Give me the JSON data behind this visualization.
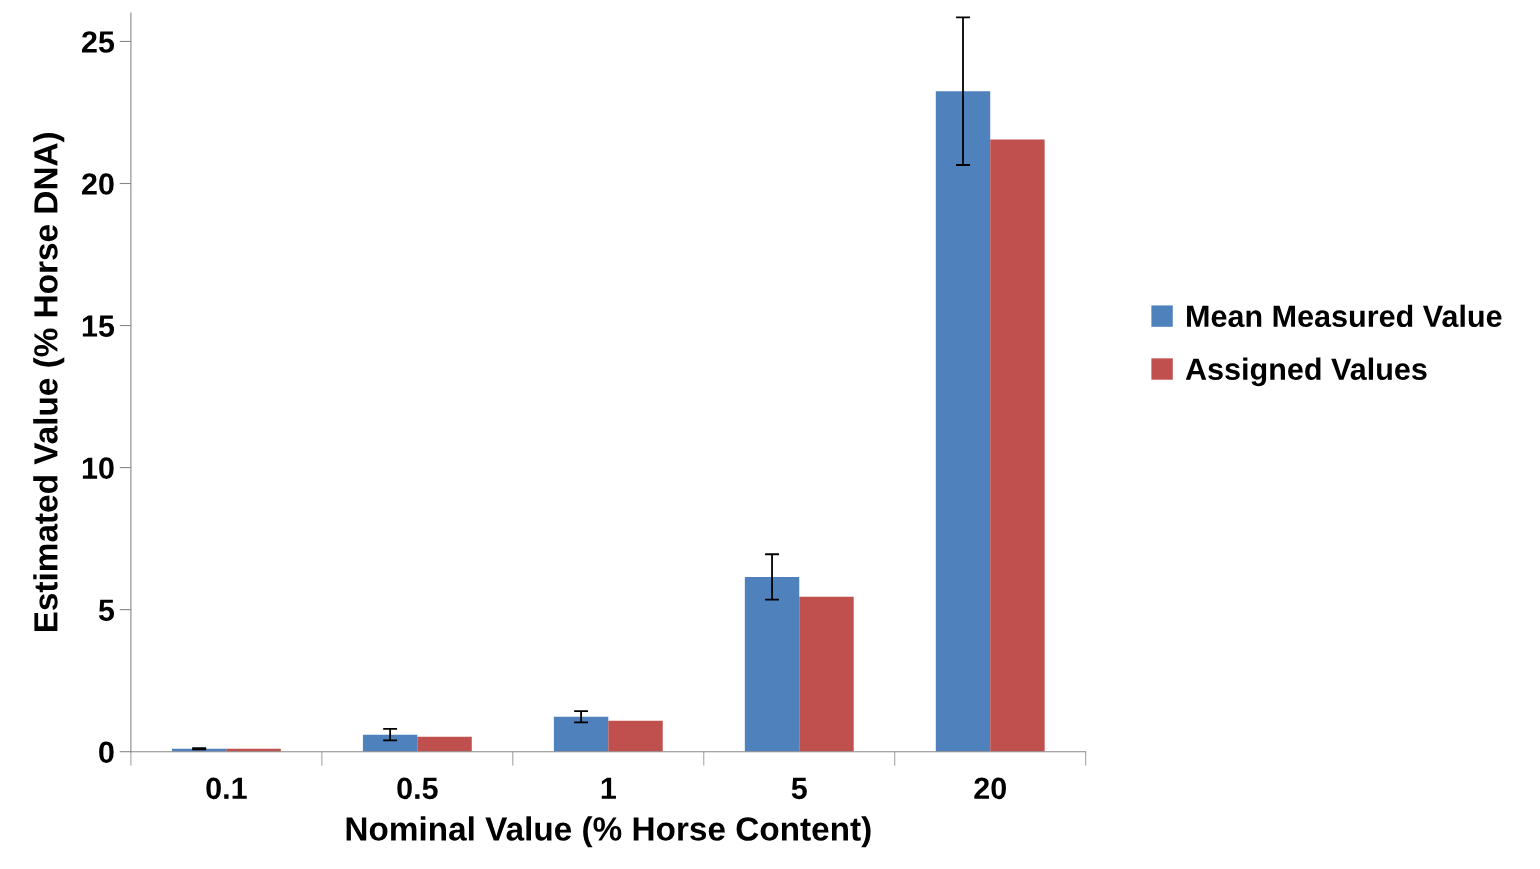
{
  "chart_data": {
    "type": "bar",
    "xlabel": "Nominal Value (% Horse Content)",
    "ylabel": "Estimated Value (% Horse DNA)",
    "categories": [
      "0.1",
      "0.5",
      "1",
      "5",
      "20"
    ],
    "series": [
      {
        "name": "Mean Measured Value",
        "color": "#4f81bd",
        "values": [
          0.1,
          0.6,
          1.23,
          6.15,
          23.25
        ],
        "errors": [
          0.02,
          0.2,
          0.2,
          0.8,
          2.6
        ]
      },
      {
        "name": "Assigned Values",
        "color": "#c0504d",
        "values": [
          0.1,
          0.53,
          1.09,
          5.45,
          21.55
        ]
      }
    ],
    "ylim": [
      0,
      26
    ],
    "yticks": [
      0,
      5,
      10,
      15,
      20,
      25
    ],
    "grid": false,
    "legend": "right"
  }
}
